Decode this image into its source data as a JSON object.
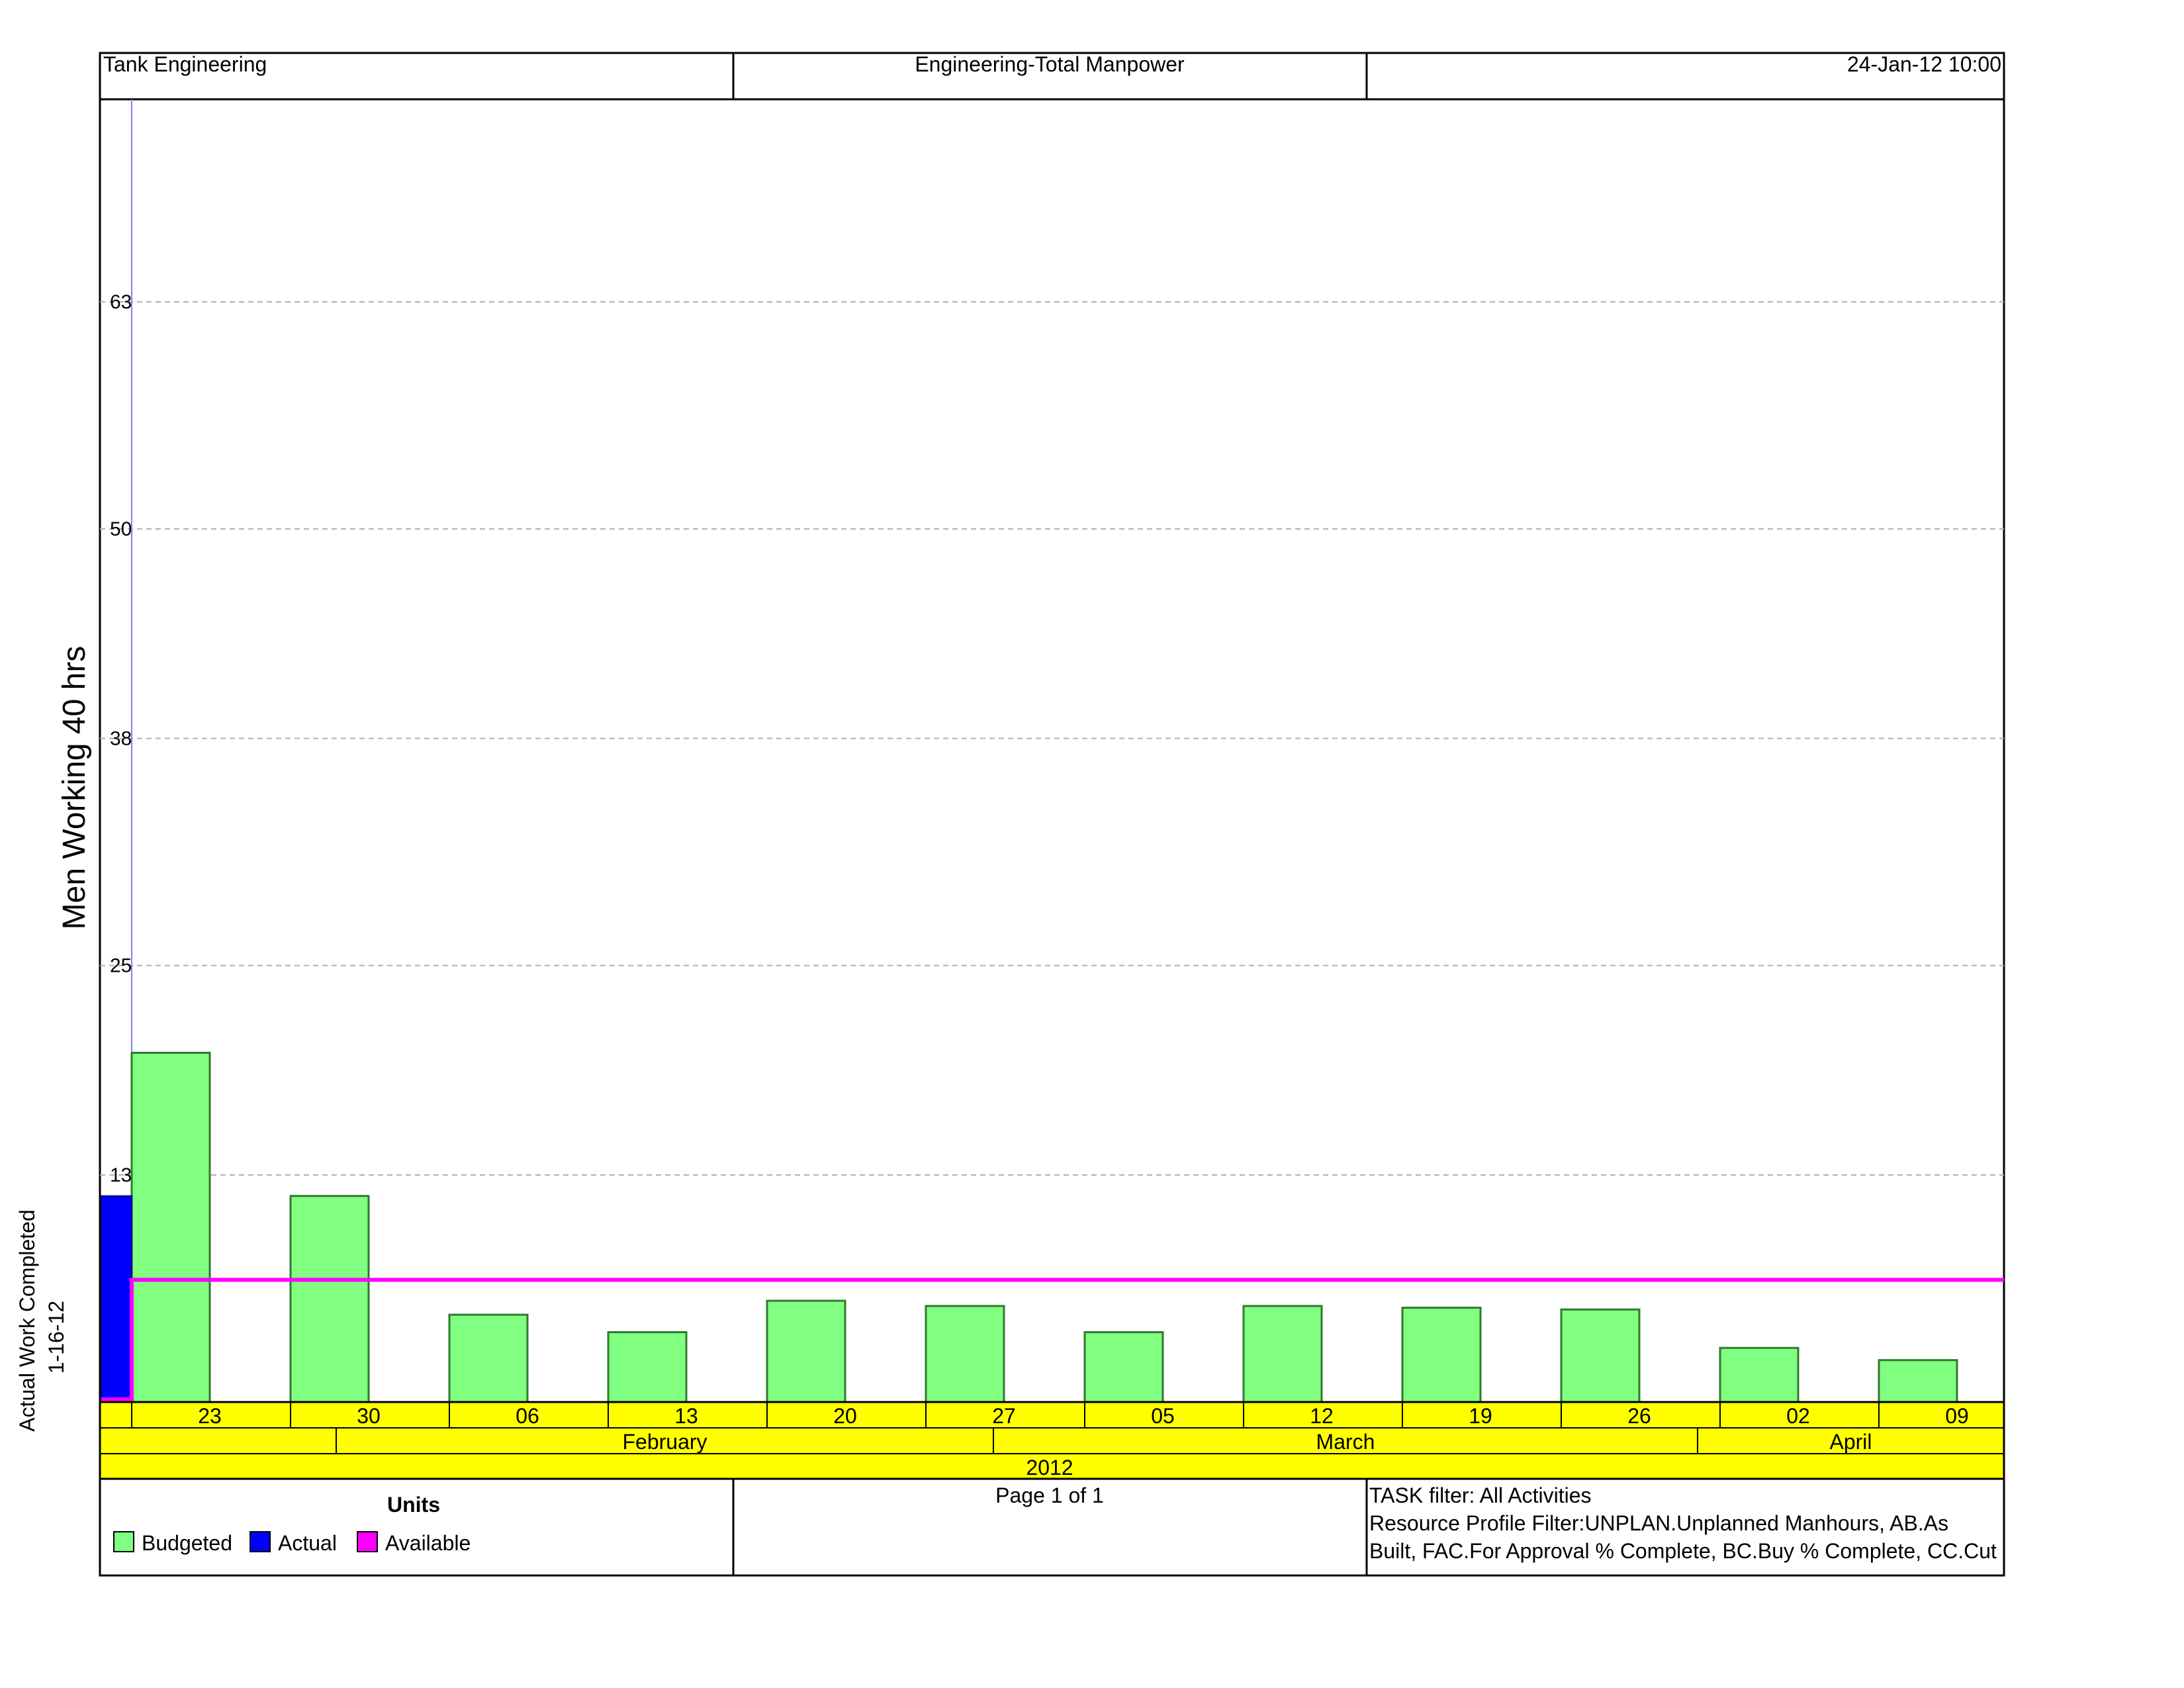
{
  "header": {
    "left": "Tank Engineering",
    "center": "Engineering-Total Manpower",
    "right": "24-Jan-12 10:00"
  },
  "chart_data": {
    "type": "bar",
    "ylabel": "Men Working 40 hrs",
    "ylim": [
      0,
      75
    ],
    "y_ticks": [
      13,
      25,
      38,
      50,
      63
    ],
    "grid": "horizontal-dashed",
    "data_date_label": [
      "Actual Work Completed",
      "1-16-12"
    ],
    "week_ticks": [
      "23",
      "30",
      "06",
      "13",
      "20",
      "27",
      "05",
      "12",
      "19",
      "26",
      "02",
      "09"
    ],
    "months": [
      "February",
      "March",
      "April"
    ],
    "year": "2012",
    "series": [
      {
        "name": "Budgeted",
        "color": "#80ff80",
        "values": [
          20,
          11.8,
          5,
          4,
          5.8,
          5.5,
          4,
          5.5,
          5.4,
          5.3,
          3.1,
          2.4
        ]
      },
      {
        "name": "Actual",
        "color": "#0000ff",
        "values": [
          11.8
        ]
      },
      {
        "name": "Available",
        "color": "#ff00ff",
        "values": [
          7
        ]
      }
    ]
  },
  "legend": {
    "title": "Units",
    "items": [
      {
        "label": "Budgeted",
        "color": "#80ff80"
      },
      {
        "label": "Actual",
        "color": "#0000ff"
      },
      {
        "label": "Available",
        "color": "#ff00ff"
      }
    ]
  },
  "footer": {
    "page": "Page 1 of 1",
    "filter_lines": [
      "TASK filter: All Activities",
      "Resource Profile Filter:UNPLAN.Unplanned Manhours, AB.As",
      "Built, FAC.For Approval % Complete, BC.Buy % Complete, CC.Cut"
    ]
  }
}
